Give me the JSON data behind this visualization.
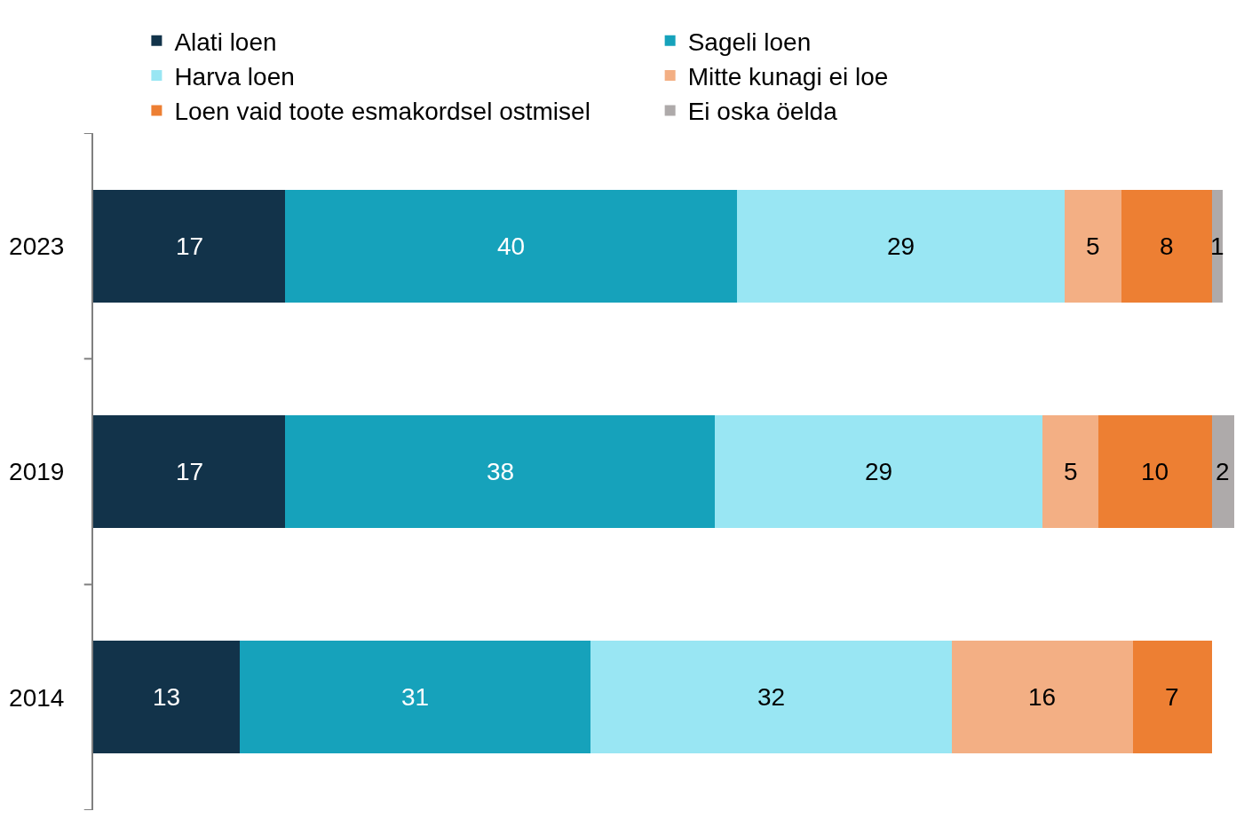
{
  "chart_data": {
    "type": "bar",
    "orientation": "horizontal",
    "stacked": true,
    "data_labels": true,
    "legend": "top",
    "tick_labels": "y",
    "categories": [
      "2023",
      "2019",
      "2014"
    ],
    "xlim": [
      0,
      101
    ],
    "series": [
      {
        "name": "Alati loen",
        "color": "#12334a",
        "values": [
          17,
          17,
          13
        ]
      },
      {
        "name": "Sageli loen",
        "color": "#16a2bb",
        "values": [
          40,
          38,
          31
        ]
      },
      {
        "name": "Harva loen",
        "color": "#99e6f3",
        "values": [
          29,
          29,
          32
        ]
      },
      {
        "name": "Mitte kunagi ei loe",
        "color": "#f3af84",
        "values": [
          5,
          5,
          16
        ]
      },
      {
        "name": "Loen vaid toote esmakordsel ostmisel",
        "color": "#ed7f33",
        "values": [
          8,
          10,
          7
        ]
      },
      {
        "name": "Ei oska öelda",
        "color": "#aeaaaa",
        "values": [
          1,
          2,
          null
        ]
      }
    ]
  }
}
